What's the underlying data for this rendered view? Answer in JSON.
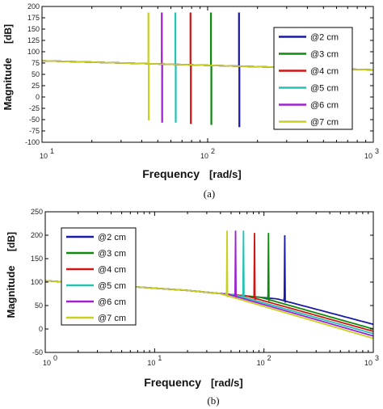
{
  "chart_data": [
    {
      "type": "line",
      "panel_label": "(a)",
      "xlabel": "Frequency",
      "xunit": "[rad/s]",
      "ylabel": "Magnitude",
      "yunit": "[dB]",
      "xscale": "log",
      "xlim": [
        10,
        1000
      ],
      "ylim": [
        -100,
        200
      ],
      "xticks": [
        10,
        100,
        1000
      ],
      "xtick_labels": [
        [
          "10",
          "1"
        ],
        [
          "10",
          "2"
        ],
        [
          "10",
          "3"
        ]
      ],
      "yticks": [
        -100,
        -75,
        -50,
        -25,
        0,
        25,
        50,
        75,
        100,
        125,
        150,
        175,
        200
      ],
      "grid": false,
      "legend_position": "right",
      "series": [
        {
          "name": "@2 cm",
          "color": "#1a1aa6",
          "resonance": 155,
          "peak": 185,
          "notch": -65
        },
        {
          "name": "@3 cm",
          "color": "#0f8a0f",
          "resonance": 105,
          "peak": 185,
          "notch": -60
        },
        {
          "name": "@4 cm",
          "color": "#d01515",
          "resonance": 79,
          "peak": 185,
          "notch": -58
        },
        {
          "name": "@5 cm",
          "color": "#22c3b3",
          "resonance": 64,
          "peak": 185,
          "notch": -55
        },
        {
          "name": "@6 cm",
          "color": "#a020d0",
          "resonance": 53,
          "peak": 185,
          "notch": -55
        },
        {
          "name": "@7 cm",
          "color": "#c8d020",
          "resonance": 44,
          "peak": 185,
          "notch": -50
        }
      ]
    },
    {
      "type": "line",
      "panel_label": "(b)",
      "xlabel": "Frequency",
      "xunit": "[rad/s]",
      "ylabel": "Magnitude",
      "yunit": "[dB]",
      "xscale": "log",
      "xlim": [
        1,
        1000
      ],
      "ylim": [
        -50,
        250
      ],
      "xticks": [
        1,
        10,
        100,
        1000
      ],
      "xtick_labels": [
        [
          "10",
          "0"
        ],
        [
          "10",
          "1"
        ],
        [
          "10",
          "2"
        ],
        [
          "10",
          "3"
        ]
      ],
      "yticks": [
        -50,
        0,
        50,
        100,
        150,
        200,
        250
      ],
      "grid": false,
      "legend_position": "left",
      "series": [
        {
          "name": "@2 cm",
          "color": "#1a1aa6",
          "resonance": 155,
          "peak": 200,
          "end": 10
        },
        {
          "name": "@3 cm",
          "color": "#0f8a0f",
          "resonance": 110,
          "peak": 205,
          "end": 0
        },
        {
          "name": "@4 cm",
          "color": "#d01515",
          "resonance": 82,
          "peak": 205,
          "end": -5
        },
        {
          "name": "@5 cm",
          "color": "#22c3b3",
          "resonance": 65,
          "peak": 210,
          "end": -10
        },
        {
          "name": "@6 cm",
          "color": "#a020d0",
          "resonance": 55,
          "peak": 210,
          "end": -15
        },
        {
          "name": "@7 cm",
          "color": "#c8d020",
          "resonance": 46,
          "peak": 210,
          "end": -20
        }
      ]
    }
  ]
}
